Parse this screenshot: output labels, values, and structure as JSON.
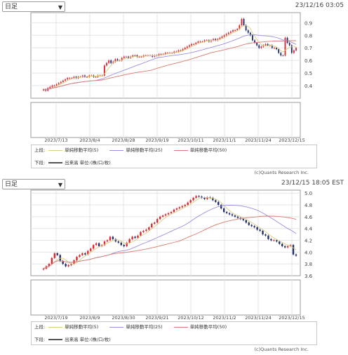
{
  "panels": [
    {
      "select_value": "日足",
      "timestamp": "23/12/16 03:05",
      "legend": {
        "upper_label": "上段:",
        "ma": [
          {
            "label": "単純移動平均(5)",
            "color": "#d8d080"
          },
          {
            "label": "単純移動平均(25)",
            "color": "#9a8fe0"
          },
          {
            "label": "単純移動平均(50)",
            "color": "#d97a6a"
          }
        ],
        "lower_label": "下段:",
        "volume_label": "出来高 単位:(株/口/枚)",
        "volume_color": "#555555"
      },
      "credit": "(c)Quants Research Inc."
    },
    {
      "select_value": "日足",
      "timestamp": "23/12/15 18:05 EST",
      "legend": {
        "upper_label": "上段:",
        "ma": [
          {
            "label": "単純移動平均(5)",
            "color": "#d8d080"
          },
          {
            "label": "単純移動平均(25)",
            "color": "#9a8fe0"
          },
          {
            "label": "単純移動平均(50)",
            "color": "#d97a6a"
          }
        ],
        "lower_label": "下段:",
        "volume_label": "出来高 単位:(株/口/枚)",
        "volume_color": "#555555"
      },
      "credit": "(c)Quants Research Inc."
    }
  ],
  "chart_data": [
    {
      "type": "candlestick",
      "up_color": "#e0242b",
      "down_color": "#1f2a6b",
      "ylim": [
        0.3,
        0.98
      ],
      "y_ticks": [
        "0.9",
        "0.8",
        "0.7",
        "0.6",
        "0.5",
        "0.4"
      ],
      "x_tick_labels": [
        "2023/7/13",
        "2023/8/4",
        "2023/8/28",
        "2023/9/19",
        "2023/10/11",
        "2023/11/1",
        "2023/11/24",
        "2023/12/15"
      ],
      "grid": true,
      "close": [
        0.37,
        0.36,
        0.38,
        0.39,
        0.4,
        0.4,
        0.41,
        0.42,
        0.43,
        0.44,
        0.45,
        0.46,
        0.46,
        0.46,
        0.47,
        0.46,
        0.47,
        0.47,
        0.48,
        0.47,
        0.47,
        0.48,
        0.48,
        0.47,
        0.47,
        0.48,
        0.48,
        0.48,
        0.56,
        0.58,
        0.6,
        0.58,
        0.59,
        0.61,
        0.6,
        0.6,
        0.62,
        0.63,
        0.63,
        0.62,
        0.63,
        0.64,
        0.64,
        0.63,
        0.63,
        0.63,
        0.64,
        0.64,
        0.64,
        0.64,
        0.63,
        0.64,
        0.64,
        0.65,
        0.65,
        0.65,
        0.66,
        0.66,
        0.66,
        0.66,
        0.67,
        0.67,
        0.68,
        0.68,
        0.69,
        0.7,
        0.71,
        0.72,
        0.73,
        0.73,
        0.74,
        0.75,
        0.75,
        0.75,
        0.76,
        0.76,
        0.75,
        0.76,
        0.77,
        0.76,
        0.77,
        0.78,
        0.79,
        0.8,
        0.81,
        0.82,
        0.83,
        0.84,
        0.84,
        0.85,
        0.88,
        0.93,
        0.88,
        0.84,
        0.82,
        0.8,
        0.76,
        0.74,
        0.72,
        0.7,
        0.71,
        0.72,
        0.73,
        0.72,
        0.72,
        0.7,
        0.7,
        0.69,
        0.66,
        0.64,
        0.64,
        0.78,
        0.74,
        0.72,
        0.66,
        0.68,
        0.7
      ]
    },
    {
      "type": "candlestick",
      "up_color": "#e0242b",
      "down_color": "#1f2a6b",
      "ylim": [
        3.6,
        5.05
      ],
      "y_ticks": [
        "5.0",
        "4.8",
        "4.6",
        "4.4",
        "4.2",
        "4.0",
        "3.8",
        "3.6"
      ],
      "x_tick_labels": [
        "2023/7/19",
        "2023/8/9",
        "2023/8/30",
        "2023/9/21",
        "2023/10/12",
        "2023/11/2",
        "2023/11/24",
        "2023/12/15"
      ],
      "grid": true,
      "close": [
        3.72,
        3.76,
        3.8,
        3.9,
        3.98,
        3.95,
        3.85,
        3.8,
        3.76,
        3.78,
        3.8,
        3.86,
        3.92,
        3.95,
        3.98,
        3.96,
        4.02,
        4.06,
        4.12,
        4.15,
        4.1,
        4.12,
        4.18,
        4.2,
        4.26,
        4.22,
        4.18,
        4.16,
        4.12,
        4.1,
        4.16,
        4.22,
        4.26,
        4.24,
        4.28,
        4.34,
        4.36,
        4.38,
        4.42,
        4.48,
        4.5,
        4.56,
        4.6,
        4.62,
        4.64,
        4.66,
        4.68,
        4.72,
        4.74,
        4.76,
        4.78,
        4.8,
        4.84,
        4.88,
        4.92,
        4.95,
        4.94,
        4.92,
        4.9,
        4.93,
        4.92,
        4.88,
        4.85,
        4.8,
        4.74,
        4.68,
        4.66,
        4.64,
        4.62,
        4.6,
        4.58,
        4.56,
        4.54,
        4.5,
        4.46,
        4.44,
        4.42,
        4.38,
        4.36,
        4.3,
        4.28,
        4.22,
        4.2,
        4.2,
        4.18,
        4.14,
        4.1,
        4.08,
        4.1,
        4.12,
        3.96,
        3.94
      ]
    }
  ]
}
